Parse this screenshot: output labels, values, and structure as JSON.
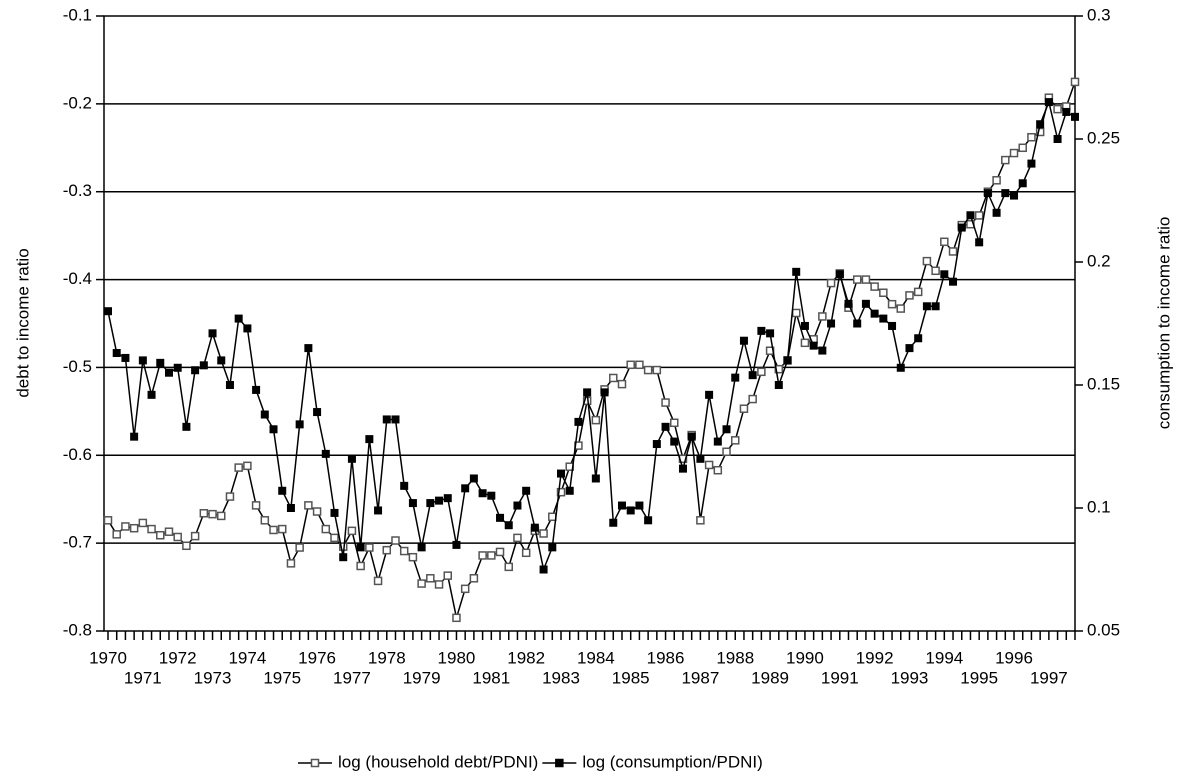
{
  "chart_data": {
    "type": "line",
    "y_label": "debt to income ratio",
    "y2_label": "consumption to income ratio",
    "categories": [
      "1970",
      null,
      null,
      null,
      "1971",
      null,
      null,
      null,
      "1972",
      null,
      null,
      null,
      "1973",
      null,
      null,
      null,
      "1974",
      null,
      null,
      null,
      "1975",
      null,
      null,
      null,
      "1976",
      null,
      null,
      null,
      "1977",
      null,
      null,
      null,
      "1978",
      null,
      null,
      null,
      "1979",
      null,
      null,
      null,
      "1980",
      null,
      null,
      null,
      "1981",
      null,
      null,
      null,
      "1982",
      null,
      null,
      null,
      "1983",
      null,
      null,
      null,
      "1984",
      null,
      null,
      null,
      "1985",
      null,
      null,
      null,
      "1986",
      null,
      null,
      null,
      "1987",
      null,
      null,
      null,
      "1988",
      null,
      null,
      null,
      "1989",
      null,
      null,
      null,
      "1990",
      null,
      null,
      null,
      "1991",
      null,
      null,
      null,
      "1992",
      null,
      null,
      null,
      "1993",
      null,
      null,
      null,
      "1994",
      null,
      null,
      null,
      "1995",
      null,
      null,
      null,
      "1996",
      null,
      null,
      null,
      "1997",
      null,
      null,
      null
    ],
    "ylim": [
      -0.8,
      -0.1
    ],
    "yticks": [
      -0.8,
      -0.7,
      -0.6,
      -0.5,
      -0.4,
      -0.3,
      -0.2,
      -0.1
    ],
    "y2lim": [
      0.05,
      0.3
    ],
    "y2ticks": [
      0.05,
      0.1,
      0.15,
      0.2,
      0.25,
      0.3
    ],
    "grid": true,
    "legend": "bottom",
    "series": [
      {
        "name": "log (household debt/PDNI)",
        "color": "#555555",
        "marker": "open-square",
        "values": [
          -0.674,
          -0.69,
          -0.681,
          -0.683,
          -0.677,
          -0.684,
          -0.691,
          -0.687,
          -0.693,
          -0.703,
          -0.692,
          -0.666,
          -0.667,
          -0.669,
          -0.647,
          -0.614,
          -0.612,
          -0.657,
          -0.674,
          -0.685,
          -0.684,
          -0.723,
          -0.705,
          -0.657,
          -0.664,
          -0.684,
          -0.694,
          -0.704,
          -0.686,
          -0.726,
          -0.705,
          -0.743,
          -0.708,
          -0.697,
          -0.709,
          -0.716,
          -0.746,
          -0.74,
          -0.747,
          -0.737,
          -0.785,
          -0.752,
          -0.74,
          -0.714,
          -0.714,
          -0.71,
          -0.727,
          -0.694,
          -0.711,
          -0.686,
          -0.689,
          -0.67,
          -0.642,
          -0.613,
          -0.589,
          -0.538,
          -0.56,
          -0.525,
          -0.512,
          -0.519,
          -0.497,
          -0.497,
          -0.503,
          -0.503,
          -0.54,
          -0.563,
          -0.604,
          -0.577,
          -0.674,
          -0.611,
          -0.617,
          -0.596,
          -0.583,
          -0.547,
          -0.536,
          -0.505,
          -0.481,
          -0.502,
          -0.492,
          -0.438,
          -0.472,
          -0.468,
          -0.442,
          -0.404,
          -0.393,
          -0.432,
          -0.4,
          -0.4,
          -0.408,
          -0.415,
          -0.428,
          -0.433,
          -0.418,
          -0.414,
          -0.379,
          -0.39,
          -0.357,
          -0.368,
          -0.338,
          -0.337,
          -0.327,
          -0.3,
          -0.287,
          -0.264,
          -0.256,
          -0.25,
          -0.238,
          -0.232,
          -0.193,
          -0.206,
          -0.203,
          -0.175
        ]
      },
      {
        "name": "log (consumption/PDNI)",
        "color": "#000000",
        "marker": "filled-square",
        "axis": "y2",
        "values": [
          0.18,
          0.163,
          0.161,
          0.129,
          0.16,
          0.146,
          0.159,
          0.155,
          0.157,
          0.133,
          0.156,
          0.158,
          0.171,
          0.16,
          0.15,
          0.177,
          0.173,
          0.148,
          0.138,
          0.132,
          0.107,
          0.1,
          0.134,
          0.165,
          0.139,
          0.122,
          0.098,
          0.08,
          0.12,
          0.084,
          0.128,
          0.099,
          0.136,
          0.136,
          0.109,
          0.102,
          0.084,
          0.102,
          0.103,
          0.104,
          0.085,
          0.108,
          0.112,
          0.106,
          0.105,
          0.096,
          0.093,
          0.101,
          0.107,
          0.092,
          0.075,
          0.084,
          0.114,
          0.107,
          0.135,
          0.147,
          0.112,
          0.147,
          0.094,
          0.101,
          0.099,
          0.101,
          0.095,
          0.126,
          0.133,
          0.127,
          0.116,
          0.129,
          0.12,
          0.146,
          0.127,
          0.132,
          0.153,
          0.168,
          0.154,
          0.172,
          0.171,
          0.15,
          0.16,
          0.196,
          0.174,
          0.166,
          0.164,
          0.175,
          0.195,
          0.183,
          0.175,
          0.183,
          0.179,
          0.177,
          0.174,
          0.157,
          0.165,
          0.169,
          0.182,
          0.182,
          0.195,
          0.192,
          0.214,
          0.219,
          0.208,
          0.228,
          0.22,
          0.228,
          0.227,
          0.232,
          0.24,
          0.256,
          0.265,
          0.25,
          0.261,
          0.259
        ]
      }
    ]
  }
}
